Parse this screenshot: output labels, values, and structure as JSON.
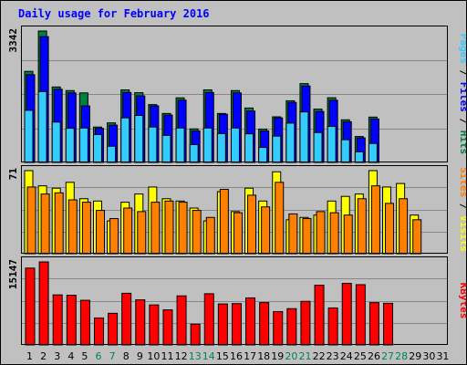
{
  "title": "Daily usage for February 2016",
  "colors": {
    "pages": "#33ccff",
    "files": "#0000ff",
    "hits": "#008040",
    "sites": "#ff8000",
    "visits": "#ffff00",
    "kbytes": "#ff0000",
    "weekday_label": "#000000",
    "weekend_label": "#00805c"
  },
  "side_labels": {
    "top": [
      {
        "text": "Pages",
        "color": "#33ccff"
      },
      {
        "text": " / ",
        "color": "#000000"
      },
      {
        "text": "Files",
        "color": "#0000ff"
      },
      {
        "text": " / ",
        "color": "#000000"
      },
      {
        "text": "Hits",
        "color": "#008040"
      }
    ],
    "mid": [
      {
        "text": "Sites",
        "color": "#ff8000"
      },
      {
        "text": " / ",
        "color": "#000000"
      },
      {
        "text": "Visits",
        "color": "#ffff00"
      }
    ],
    "bottom": [
      {
        "text": "KBytes",
        "color": "#ff0000"
      }
    ]
  },
  "chart_data": {
    "type": "bar",
    "categories": [
      "1",
      "2",
      "3",
      "4",
      "5",
      "6",
      "7",
      "8",
      "9",
      "10",
      "11",
      "12",
      "13",
      "14",
      "15",
      "16",
      "17",
      "18",
      "19",
      "20",
      "21",
      "22",
      "23",
      "24",
      "25",
      "26",
      "27",
      "28",
      "29",
      "30",
      "31"
    ],
    "weekend_days": [
      6,
      7,
      13,
      14,
      20,
      21,
      27,
      28
    ],
    "panels": [
      {
        "name": "hits-files-pages",
        "ymax_label": "3342",
        "ymax": 3342,
        "series": [
          {
            "name": "Hits",
            "values": [
              2316,
              3342,
              1919,
              1827,
              1768,
              900,
              1006,
              1845,
              1774,
              1470,
              1245,
              1643,
              853,
              1845,
              1245,
              1827,
              1384,
              848,
              1160,
              1568,
              2004,
              1356,
              1645,
              1084,
              659,
              1153,
              0,
              0,
              0,
              0,
              0
            ]
          },
          {
            "name": "Files",
            "values": [
              2231,
              3200,
              1861,
              1768,
              1438,
              866,
              948,
              1779,
              1692,
              1438,
              1204,
              1584,
              800,
              1779,
              1226,
              1768,
              1308,
              800,
              1132,
              1526,
              1944,
              1296,
              1581,
              1034,
              623,
              1106,
              0,
              0,
              0,
              0,
              0
            ]
          },
          {
            "name": "Pages",
            "values": [
              1325,
              1802,
              1026,
              868,
              875,
              709,
              411,
              1134,
              1195,
              901,
              688,
              875,
              454,
              875,
              734,
              875,
              727,
              381,
              670,
              1000,
              1285,
              760,
              916,
              578,
              269,
              482,
              0,
              0,
              0,
              0,
              0
            ]
          }
        ]
      },
      {
        "name": "visits-sites",
        "ymax_label": "71",
        "ymax": 71,
        "series": [
          {
            "name": "Visits",
            "values": [
              71,
              58,
              56,
              61,
              47,
              45,
              28,
              44,
              51,
              57,
              47,
              45,
              39,
              28,
              53,
              36,
              56,
              45,
              70,
              29,
              31,
              33,
              45,
              49,
              51,
              71,
              57,
              60,
              33,
              0,
              0
            ]
          },
          {
            "name": "Sites",
            "values": [
              57,
              51,
              52,
              46,
              44,
              37,
              30,
              39,
              36,
              44,
              45,
              44,
              37,
              31,
              55,
              35,
              50,
              40,
              61,
              34,
              30,
              36,
              35,
              33,
              47,
              58,
              43,
              47,
              29,
              0,
              0
            ]
          }
        ]
      },
      {
        "name": "kbytes",
        "ymax_label": "15147",
        "ymax": 15147,
        "series": [
          {
            "name": "KBytes",
            "values": [
              14014,
              15147,
              9130,
              9065,
              8142,
              4920,
              5768,
              9420,
              8230,
              7300,
              6400,
              8952,
              3785,
              9340,
              7475,
              7535,
              8580,
              7720,
              6080,
              6620,
              7950,
              10890,
              6750,
              11230,
              10990,
              7710,
              7595,
              0,
              0,
              0,
              0
            ]
          }
        ]
      }
    ]
  }
}
